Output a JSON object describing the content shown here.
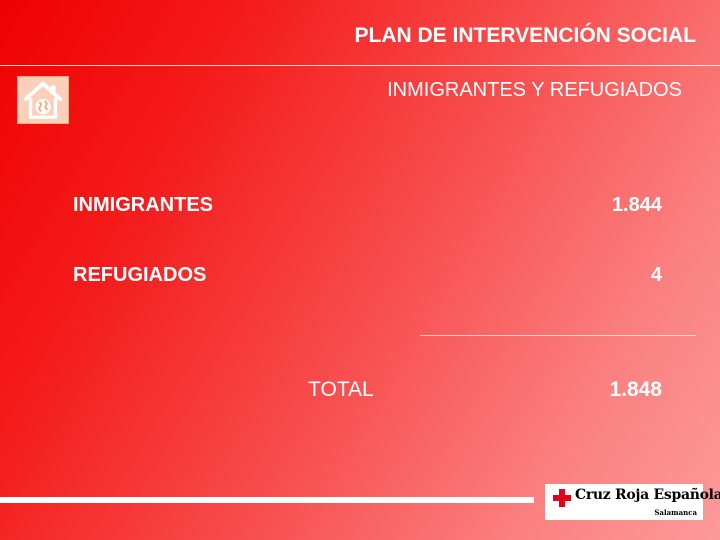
{
  "header": {
    "title": "PLAN DE INTERVENCIÓN SOCIAL",
    "subtitle": "INMIGRANTES Y REFUGIADOS"
  },
  "rows": [
    {
      "label": "INMIGRANTES",
      "value": "1.844"
    },
    {
      "label": "REFUGIADOS",
      "value": "4"
    }
  ],
  "total": {
    "label": "TOTAL",
    "value": "1.848"
  },
  "logo": {
    "name": "Cruz Roja Española",
    "location": "Salamanca"
  },
  "icons": {
    "home": "house-globe-icon",
    "logo_cross": "red-cross-icon"
  },
  "colors": {
    "background_start": "#f00000",
    "background_end": "#fc9a9a",
    "text": "#ffffff",
    "cross": "#e3001b"
  }
}
